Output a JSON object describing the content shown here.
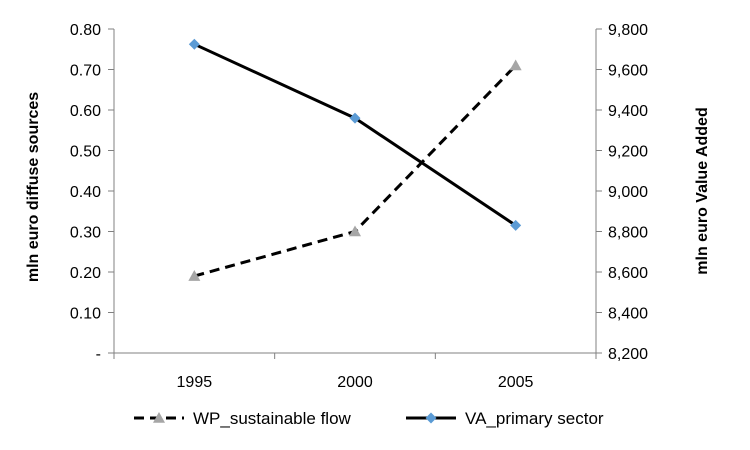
{
  "chart_data": {
    "type": "line",
    "categories": [
      "1995",
      "2000",
      "2005"
    ],
    "y_left": {
      "label": "mln euro diffuse sources",
      "range": [
        0,
        0.8
      ],
      "ticks": [
        0,
        0.1,
        0.2,
        0.3,
        0.4,
        0.5,
        0.6,
        0.7,
        0.8
      ],
      "tick_labels": [
        "-",
        "0.10",
        "0.20",
        "0.30",
        "0.40",
        "0.50",
        "0.60",
        "0.70",
        "0.80"
      ]
    },
    "y_right": {
      "label": "mln euro Value Added",
      "range": [
        8200,
        9800
      ],
      "ticks": [
        8200,
        8400,
        8600,
        8800,
        9000,
        9200,
        9400,
        9600,
        9800
      ],
      "tick_labels": [
        "8,200",
        "8,400",
        "8,600",
        "8,800",
        "9,000",
        "9,200",
        "9,400",
        "9,600",
        "9,800"
      ]
    },
    "series": [
      {
        "name": "WP_sustainable flow",
        "axis": "left",
        "values": [
          0.19,
          0.3,
          0.71
        ],
        "line_color": "#000000",
        "line_style": "dashed",
        "marker": "triangle",
        "marker_color": "#a6a6a6"
      },
      {
        "name": "VA_primary sector",
        "axis": "right",
        "values": [
          9725,
          9360,
          8830
        ],
        "line_color": "#000000",
        "line_style": "solid",
        "marker": "diamond",
        "marker_color": "#5b9bd5"
      }
    ],
    "grid": false,
    "legend_position": "bottom"
  }
}
